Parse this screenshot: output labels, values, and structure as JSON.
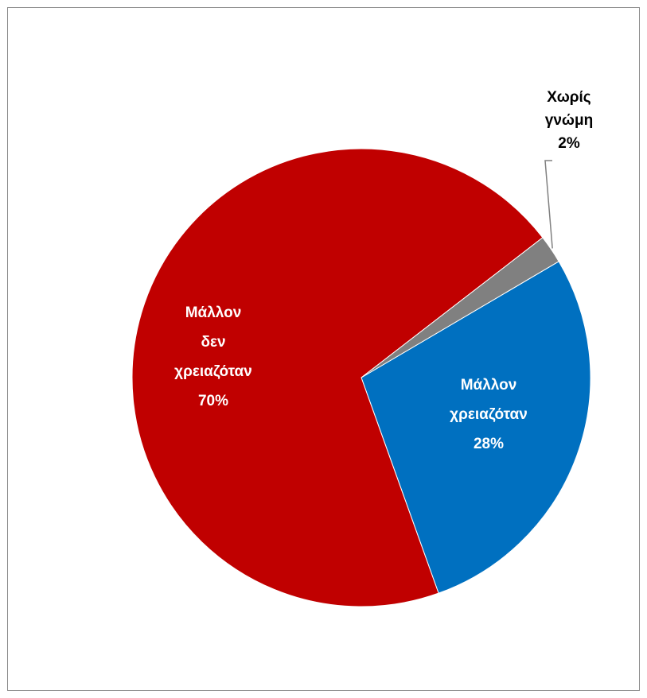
{
  "chart_data": {
    "type": "pie",
    "slices": [
      {
        "name": "Μάλλον χρειαζόταν",
        "value": 28,
        "label_lines": [
          "Μάλλον",
          "χρειαζόταν",
          "28%"
        ],
        "color": "#0070C0",
        "label_color": "#ffffff"
      },
      {
        "name": "Μάλλον δεν χρειαζόταν",
        "value": 70,
        "label_lines": [
          "Μάλλον",
          "δεν",
          "χρειαζόταν",
          "70%"
        ],
        "color": "#C00000",
        "label_color": "#ffffff"
      },
      {
        "name": "Χωρίς γνώμη",
        "value": 2,
        "label_lines": [
          "Χωρίς",
          "γνώμη",
          "2%"
        ],
        "color": "#808080",
        "label_color": "#000000"
      }
    ],
    "legend": "none"
  }
}
